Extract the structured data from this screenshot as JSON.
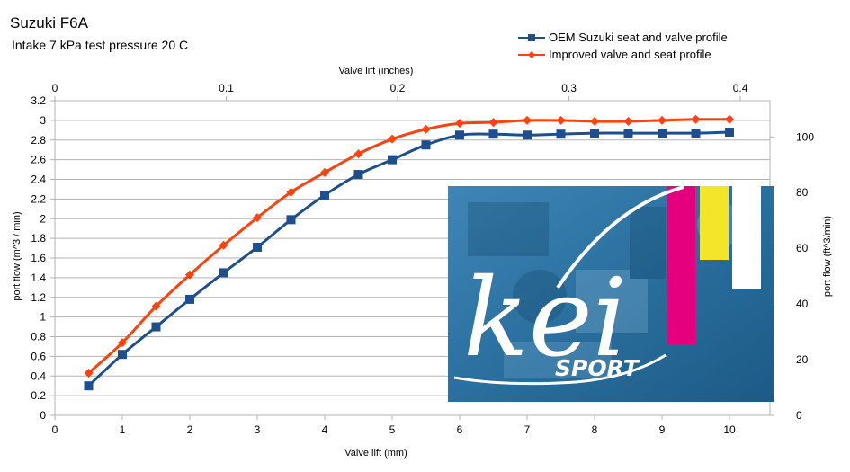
{
  "chart_data": {
    "type": "line",
    "title": "Suzuki F6A",
    "subtitle": "Intake 7 kPa test pressure 20 C",
    "xlabel": "Valve lift (mm)",
    "x2label": "Valve lift (inches)",
    "ylabel": "port flow (m^3 / min)",
    "y2label": "port flow (ft^3/min)",
    "xlim": [
      0,
      10.6
    ],
    "ylim": [
      0,
      3.2
    ],
    "x2lim": [
      0,
      0.4173
    ],
    "y2lim": [
      0,
      113
    ],
    "x_ticks": [
      "0",
      "1",
      "2",
      "3",
      "4",
      "5",
      "6",
      "7",
      "8",
      "9",
      "10"
    ],
    "x2_ticks": [
      "0",
      "0.1",
      "0.2",
      "0.3",
      "0.4"
    ],
    "y_ticks": [
      "0",
      "0.2",
      "0.4",
      "0.6",
      "0.8",
      "1",
      "1.2",
      "1.4",
      "1.6",
      "1.8",
      "2",
      "2.2",
      "2.4",
      "2.6",
      "2.8",
      "3",
      "3.2"
    ],
    "y2_ticks": [
      "0",
      "20",
      "40",
      "60",
      "80",
      "100"
    ],
    "grid": true,
    "legend_position": "top-right",
    "x": [
      0.5,
      1,
      1.5,
      2,
      2.5,
      3,
      3.5,
      4,
      4.5,
      5,
      5.5,
      6,
      6.5,
      7,
      7.5,
      8,
      8.5,
      9,
      9.5,
      10
    ],
    "series": [
      {
        "name": "OEM Suzuki seat and valve profile",
        "color": "#1f4e8c",
        "marker": "square",
        "values": [
          0.3,
          0.62,
          0.9,
          1.18,
          1.45,
          1.71,
          1.99,
          2.24,
          2.45,
          2.6,
          2.75,
          2.85,
          2.86,
          2.85,
          2.86,
          2.87,
          2.87,
          2.87,
          2.87,
          2.88
        ]
      },
      {
        "name": "Improved valve and seat profile",
        "color": "#ff420e",
        "marker": "diamond",
        "values": [
          0.43,
          0.74,
          1.11,
          1.43,
          1.73,
          2.01,
          2.27,
          2.47,
          2.66,
          2.81,
          2.91,
          2.97,
          2.98,
          3.0,
          3.0,
          2.99,
          2.99,
          3.0,
          3.01,
          3.01
        ]
      }
    ]
  },
  "logo": {
    "text": "kei",
    "subtext": "SPORT",
    "colors": [
      "#e5007e",
      "#f2e52a",
      "#ffffff"
    ],
    "background": "#2a6f9e"
  }
}
